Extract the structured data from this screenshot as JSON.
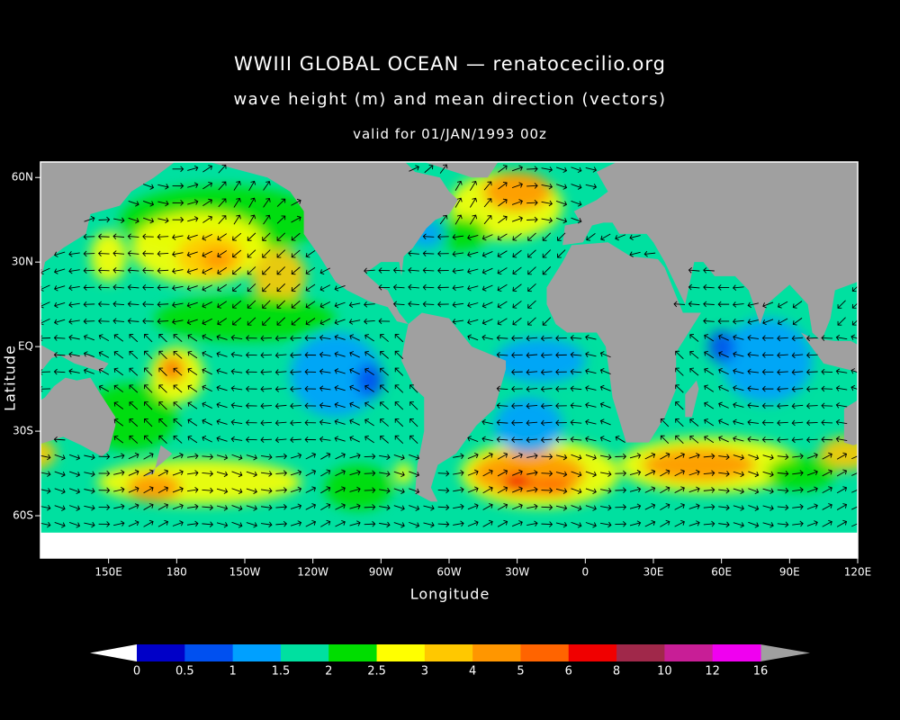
{
  "title": "WWIII GLOBAL OCEAN — renatocecilio.org",
  "subtitle": "wave height (m) and mean direction (vectors)",
  "valid": "valid for 01/JAN/1993 00z",
  "map": {
    "x_label": "Longitude",
    "y_label": "Latitude",
    "xlim": [
      120,
      480
    ],
    "ylim": [
      -75,
      65.5
    ],
    "x_ticks": [
      {
        "value": 150,
        "label": "150E"
      },
      {
        "value": 180,
        "label": "180"
      },
      {
        "value": 210,
        "label": "150W"
      },
      {
        "value": 240,
        "label": "120W"
      },
      {
        "value": 270,
        "label": "90W"
      },
      {
        "value": 300,
        "label": "60W"
      },
      {
        "value": 330,
        "label": "30W"
      },
      {
        "value": 360,
        "label": "0"
      },
      {
        "value": 390,
        "label": "30E"
      },
      {
        "value": 420,
        "label": "60E"
      },
      {
        "value": 450,
        "label": "90E"
      },
      {
        "value": 480,
        "label": "120E"
      }
    ],
    "y_ticks": [
      {
        "value": 60,
        "label": "60N"
      },
      {
        "value": 30,
        "label": "30N"
      },
      {
        "value": 0,
        "label": "EQ"
      },
      {
        "value": -30,
        "label": "30S"
      },
      {
        "value": -60,
        "label": "60S"
      }
    ]
  },
  "colorbar": {
    "levels": [
      0,
      0.5,
      1,
      1.5,
      2,
      2.5,
      3,
      4,
      5,
      6,
      8,
      10,
      12,
      16
    ],
    "colors": [
      "#0000c8",
      "#0050f0",
      "#00a0ff",
      "#00e0a0",
      "#00dd00",
      "#ffff00",
      "#ffc800",
      "#ff9600",
      "#ff6400",
      "#f00000",
      "#a0284a",
      "#c81e96",
      "#f000f0"
    ],
    "under_color": "#ffffff",
    "over_color": "#a0a0a0"
  }
}
